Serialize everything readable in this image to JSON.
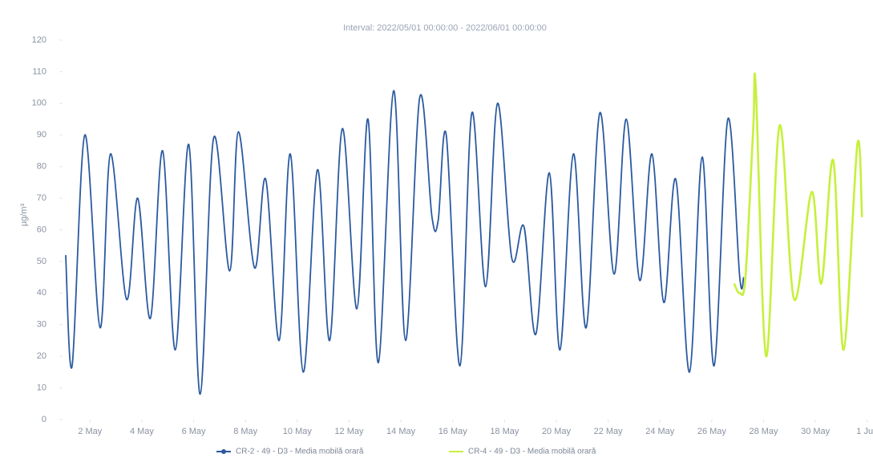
{
  "chart_data": {
    "type": "line",
    "title": "Interval: 2022/05/01 00:00:00 - 2022/06/01 00:00:00",
    "y_label": "µg/m³",
    "xlim": [
      1,
      32.1
    ],
    "xticks": [
      {
        "value": 2,
        "label": "2 May"
      },
      {
        "value": 4,
        "label": "4 May"
      },
      {
        "value": 6,
        "label": "6 May"
      },
      {
        "value": 8,
        "label": "8 May"
      },
      {
        "value": 10,
        "label": "10 May"
      },
      {
        "value": 12,
        "label": "12 May"
      },
      {
        "value": 14,
        "label": "14 May"
      },
      {
        "value": 16,
        "label": "16 May"
      },
      {
        "value": 18,
        "label": "18 May"
      },
      {
        "value": 20,
        "label": "20 May"
      },
      {
        "value": 22,
        "label": "22 May"
      },
      {
        "value": 24,
        "label": "24 May"
      },
      {
        "value": 26,
        "label": "26 May"
      },
      {
        "value": 28,
        "label": "28 May"
      },
      {
        "value": 30,
        "label": "30 May"
      },
      {
        "value": 32,
        "label": "1 Jun"
      }
    ],
    "ylim": [
      0,
      120
    ],
    "yticks": [
      0,
      10,
      20,
      30,
      40,
      50,
      60,
      70,
      80,
      90,
      100,
      110,
      120
    ],
    "grid": false,
    "series": [
      {
        "name": "CR-2 - 49 - D3 - Media mobilă orară",
        "color": "#2b5aa0",
        "marker": true,
        "x": [
          1.06,
          1.31,
          1.8,
          2.39,
          2.79,
          3.41,
          3.84,
          4.33,
          4.8,
          5.29,
          5.81,
          6.25,
          6.77,
          7.39,
          7.73,
          8.35,
          8.78,
          9.3,
          9.73,
          10.23,
          10.78,
          11.25,
          11.74,
          12.3,
          12.73,
          13.13,
          13.72,
          14.18,
          14.73,
          15.2,
          15.44,
          15.75,
          16.28,
          16.74,
          17.27,
          17.73,
          18.28,
          18.75,
          19.21,
          19.73,
          20.14,
          20.66,
          21.15,
          21.68,
          22.23,
          22.7,
          23.22,
          23.69,
          24.15,
          24.61,
          25.14,
          25.63,
          26.09,
          26.62,
          27.08,
          27.23
        ],
        "values": [
          52,
          17,
          90,
          29,
          84,
          38,
          70,
          32,
          85,
          22,
          87,
          8,
          89,
          47,
          91,
          48,
          76,
          25,
          84,
          15,
          79,
          25,
          92,
          35,
          95,
          18,
          104,
          25,
          102,
          64,
          63,
          90,
          17,
          97,
          42,
          100,
          51,
          61,
          27,
          78,
          22,
          84,
          29,
          97,
          46,
          95,
          44,
          84,
          37,
          76,
          15,
          83,
          17,
          95,
          45,
          45
        ]
      },
      {
        "name": "CR-4 - 49 - D3 - Media mobilă orară",
        "color": "#c6f03c",
        "marker": false,
        "x": [
          26.86,
          27.08,
          27.3,
          27.6,
          27.7,
          28.1,
          28.62,
          29.18,
          29.86,
          30.23,
          30.69,
          31.09,
          31.62,
          31.8
        ],
        "values": [
          43,
          40,
          45,
          92,
          105,
          20,
          93,
          38,
          72,
          43,
          82,
          22,
          87,
          64
        ]
      }
    ]
  }
}
